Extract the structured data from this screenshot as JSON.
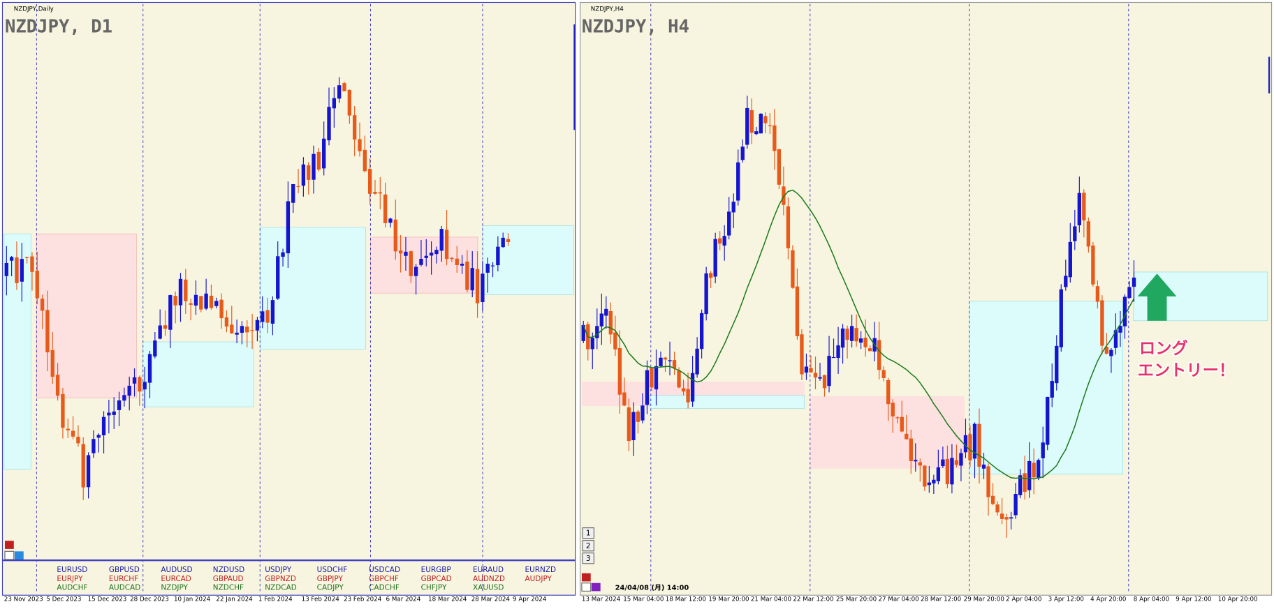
{
  "left_panel": {
    "window_title": "NZDJPY,Daily",
    "chart_label": "NZDJPY, D1",
    "x_labels": [
      "23 Nov 2023",
      "5 Dec 2023",
      "15 Dec 2023",
      "28 Dec 2023",
      "10 Jan 2024",
      "22 Jan 2024",
      "1 Feb 2024",
      "13 Feb 2024",
      "23 Feb 2024",
      "6 Mar 2024",
      "18 Mar 2024",
      "28 Mar 2024",
      "9 Apr 2024"
    ],
    "symbols": [
      [
        "EURUSD",
        "EURJPY",
        "AUDCHF"
      ],
      [
        "GBPUSD",
        "EURCHF",
        "AUDCAD"
      ],
      [
        "AUDUSD",
        "EURCAD",
        "NZDJPY"
      ],
      [
        "NZDUSD",
        "GBPAUD",
        "NZDCHF"
      ],
      [
        "USDJPY",
        "GBPNZD",
        "NZDCAD"
      ],
      [
        "USDCHF",
        "GBPJPY",
        "CADJPY"
      ],
      [
        "USDCAD",
        "GBPCHF",
        "CADCHF"
      ],
      [
        "EURGBP",
        "GBPCAD",
        "CHFJPY"
      ],
      [
        "EURAUD",
        "AUDNZD",
        "XAUUSD"
      ],
      [
        "EURNZD",
        "AUDJPY"
      ]
    ]
  },
  "right_panel": {
    "window_title": "NZDJPY,H4",
    "chart_label": "NZDJPY, H4",
    "x_labels": [
      "13 Mar 2024",
      "15 Mar 04:00",
      "18 Mar 12:00",
      "19 Mar 20:00",
      "21 Mar 04:00",
      "22 Mar 12:00",
      "25 Mar 20:00",
      "27 Mar 04:00",
      "28 Mar 12:00",
      "29 Mar 20:00",
      "2 Apr 04:00",
      "3 Apr 12:00",
      "4 Apr 20:00",
      "8 Apr 04:00",
      "9 Apr 12:00",
      "10 Apr 20:00"
    ],
    "tabs": [
      "1",
      "2",
      "3"
    ],
    "crosshair_time": "24/04/08 (月) 14:00",
    "annotation": [
      "ロング",
      "エントリー！"
    ]
  }
}
